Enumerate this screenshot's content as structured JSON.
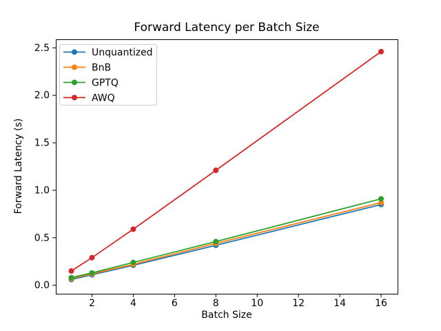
{
  "figure": {
    "title": "Forward Latency per Batch Size",
    "xlabel": "Batch Size",
    "ylabel": "Forward Latency (s)"
  },
  "chart_data": {
    "type": "line",
    "title": "Forward Latency per Batch Size",
    "xlabel": "Batch Size",
    "ylabel": "Forward Latency (s)",
    "x": [
      1,
      2,
      4,
      8,
      16
    ],
    "series": [
      {
        "name": "Unquantized",
        "color": "#1f77b4",
        "values": [
          0.06,
          0.11,
          0.21,
          0.42,
          0.85
        ]
      },
      {
        "name": "BnB",
        "color": "#ff7f0e",
        "values": [
          0.07,
          0.12,
          0.22,
          0.44,
          0.87
        ]
      },
      {
        "name": "GPTQ",
        "color": "#2ca02c",
        "values": [
          0.08,
          0.13,
          0.24,
          0.46,
          0.91
        ]
      },
      {
        "name": "AWQ",
        "color": "#d62728",
        "values": [
          0.15,
          0.29,
          0.59,
          1.21,
          2.46
        ]
      }
    ],
    "xticks": [
      2,
      4,
      6,
      8,
      10,
      12,
      14,
      16
    ],
    "yticks": [
      0.0,
      0.5,
      1.0,
      1.5,
      2.0,
      2.5
    ],
    "xlim": [
      0.25,
      16.8
    ],
    "ylim": [
      -0.09,
      2.59
    ],
    "grid": false,
    "legend_position": "upper left",
    "marker": "o"
  }
}
